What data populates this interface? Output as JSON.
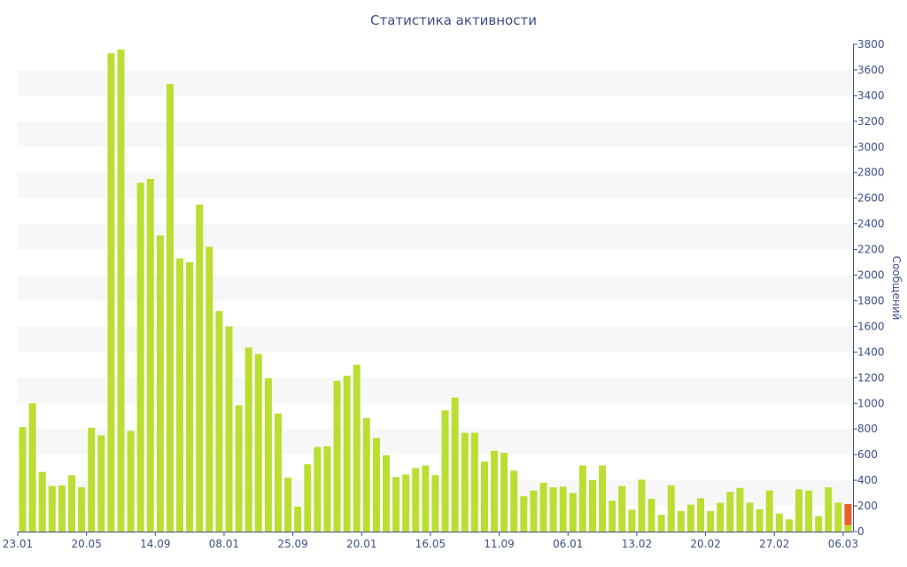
{
  "chart_data": {
    "type": "bar",
    "title": "Статистика активности",
    "ylabel": "Сообщений",
    "xlabel": "",
    "ylim": [
      0,
      3800
    ],
    "y_ticks": [
      0,
      200,
      400,
      600,
      800,
      1000,
      1200,
      1400,
      1600,
      1800,
      2000,
      2200,
      2400,
      2600,
      2800,
      3000,
      3200,
      3400,
      3600,
      3800
    ],
    "y_axis_position": "right",
    "x_tick_labels": [
      "23.01",
      "20.05",
      "14.09",
      "08.01",
      "25.09",
      "20.01",
      "16.05",
      "11.09",
      "06.01",
      "13.02",
      "20.02",
      "27.02",
      "06.03"
    ],
    "x_tick_label_positions": [
      0,
      7,
      14,
      21,
      28,
      35,
      42,
      49,
      56,
      63,
      70,
      77,
      84
    ],
    "legend": "none",
    "grid": "alternating horizontal bands",
    "colors": {
      "bar": "#bade32",
      "highlight": "#e8612c",
      "band": "#f7f7f7",
      "text": "#3e4f87"
    },
    "values": [
      815,
      1000,
      465,
      355,
      360,
      440,
      345,
      810,
      750,
      3730,
      3760,
      785,
      2720,
      2750,
      2310,
      3490,
      2130,
      2100,
      2550,
      2220,
      1720,
      1600,
      985,
      1435,
      1385,
      1195,
      920,
      420,
      195,
      525,
      660,
      665,
      1175,
      1215,
      1300,
      885,
      730,
      595,
      425,
      445,
      495,
      515,
      440,
      945,
      1045,
      770,
      770,
      545,
      630,
      615,
      475,
      275,
      320,
      380,
      345,
      350,
      300,
      515,
      400,
      515,
      240,
      355,
      170,
      405,
      255,
      130,
      360,
      160,
      210,
      260,
      160,
      225,
      310,
      340,
      225,
      175,
      320,
      140,
      95,
      330,
      320,
      120,
      345,
      225,
      215
    ],
    "highlight": {
      "index": 84,
      "stacked_base": 50,
      "value": 215
    }
  }
}
